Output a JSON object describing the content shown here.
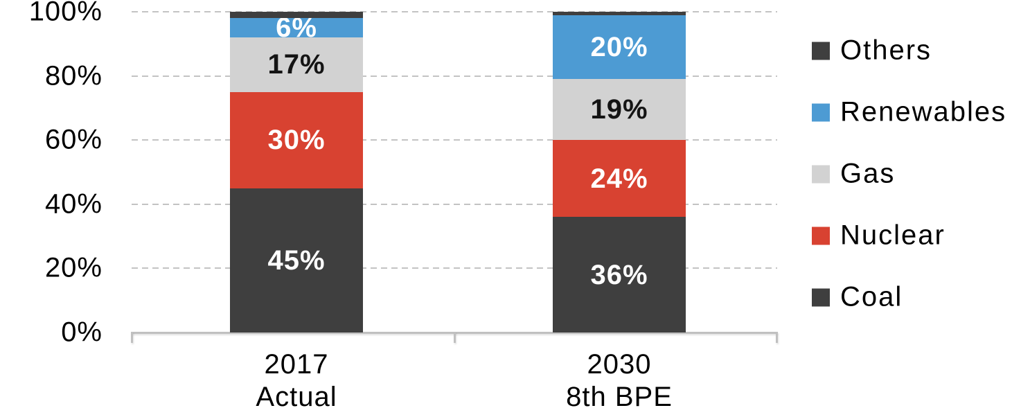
{
  "chart_data": {
    "type": "bar",
    "variant": "stacked-column-100pct",
    "title": "",
    "categories": [
      {
        "label": "2017\nActual"
      },
      {
        "label": "2030\n8th BPE"
      }
    ],
    "series": [
      {
        "name": "Coal",
        "color": "#3F3F3F",
        "values": [
          45,
          36
        ],
        "data_labels": [
          "45%",
          "36%"
        ],
        "show_labels": true,
        "label_color": "#FFFFFF"
      },
      {
        "name": "Nuclear",
        "color": "#D84231",
        "values": [
          30,
          24
        ],
        "data_labels": [
          "30%",
          "24%"
        ],
        "show_labels": true,
        "label_color": "#FFFFFF"
      },
      {
        "name": "Gas",
        "color": "#D2D2D2",
        "values": [
          17,
          19
        ],
        "data_labels": [
          "17%",
          "19%"
        ],
        "show_labels": true,
        "label_color": "#141414"
      },
      {
        "name": "Renewables",
        "color": "#4D9BD3",
        "values": [
          6,
          20
        ],
        "data_labels": [
          "6%",
          "20%"
        ],
        "show_labels": true,
        "label_color": "#FFFFFF"
      },
      {
        "name": "Others",
        "color": "#3F3F3F",
        "values": [
          2,
          1
        ],
        "data_labels": [
          "",
          ""
        ],
        "show_labels": false,
        "label_color": "#FFFFFF"
      }
    ],
    "stack_order_bottom_to_top": [
      "Coal",
      "Nuclear",
      "Gas",
      "Renewables",
      "Others"
    ],
    "y_axis": {
      "min": 0,
      "max": 100,
      "step": 20,
      "tick_labels": [
        "0%",
        "20%",
        "40%",
        "60%",
        "80%",
        "100%"
      ],
      "gridline_style": "dashed",
      "gridline_color": "#C3C3C3",
      "axis_line_color": "#C0C0C0"
    },
    "x_axis": {
      "tick_labels": [
        "2017 Actual",
        "2030 8th BPE"
      ]
    },
    "legend": {
      "position": "right",
      "entries_top_to_bottom": [
        "Others",
        "Renewables",
        "Gas",
        "Nuclear",
        "Coal"
      ]
    },
    "background_color": "#FFFFFF",
    "text_color": "#000000"
  }
}
